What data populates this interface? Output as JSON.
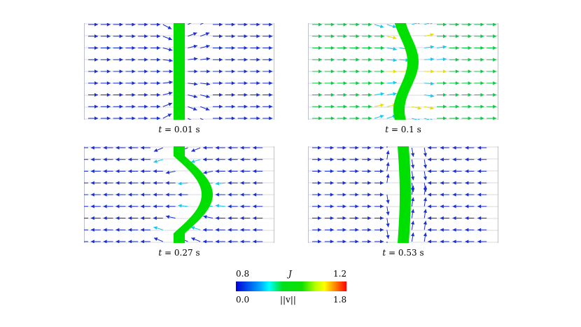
{
  "panels": [
    {
      "caption_var": "t",
      "caption_eq": "= 0.01 s"
    },
    {
      "caption_var": "t",
      "caption_eq": "= 0.1 s"
    },
    {
      "caption_var": "t",
      "caption_eq": "= 0.27 s"
    },
    {
      "caption_var": "t",
      "caption_eq": "= 0.53 s"
    }
  ],
  "colorbar": {
    "top_min": "0.8",
    "top_label": "J",
    "top_max": "1.2",
    "bottom_min": "0.0",
    "bottom_label": "||v||",
    "bottom_max": "1.8"
  },
  "colors": {
    "arrow_blue": "#1a2fd0",
    "arrow_cyan": "#18c8e8",
    "membrane_green": "#00e000",
    "grid": "#b0b0c8"
  }
}
